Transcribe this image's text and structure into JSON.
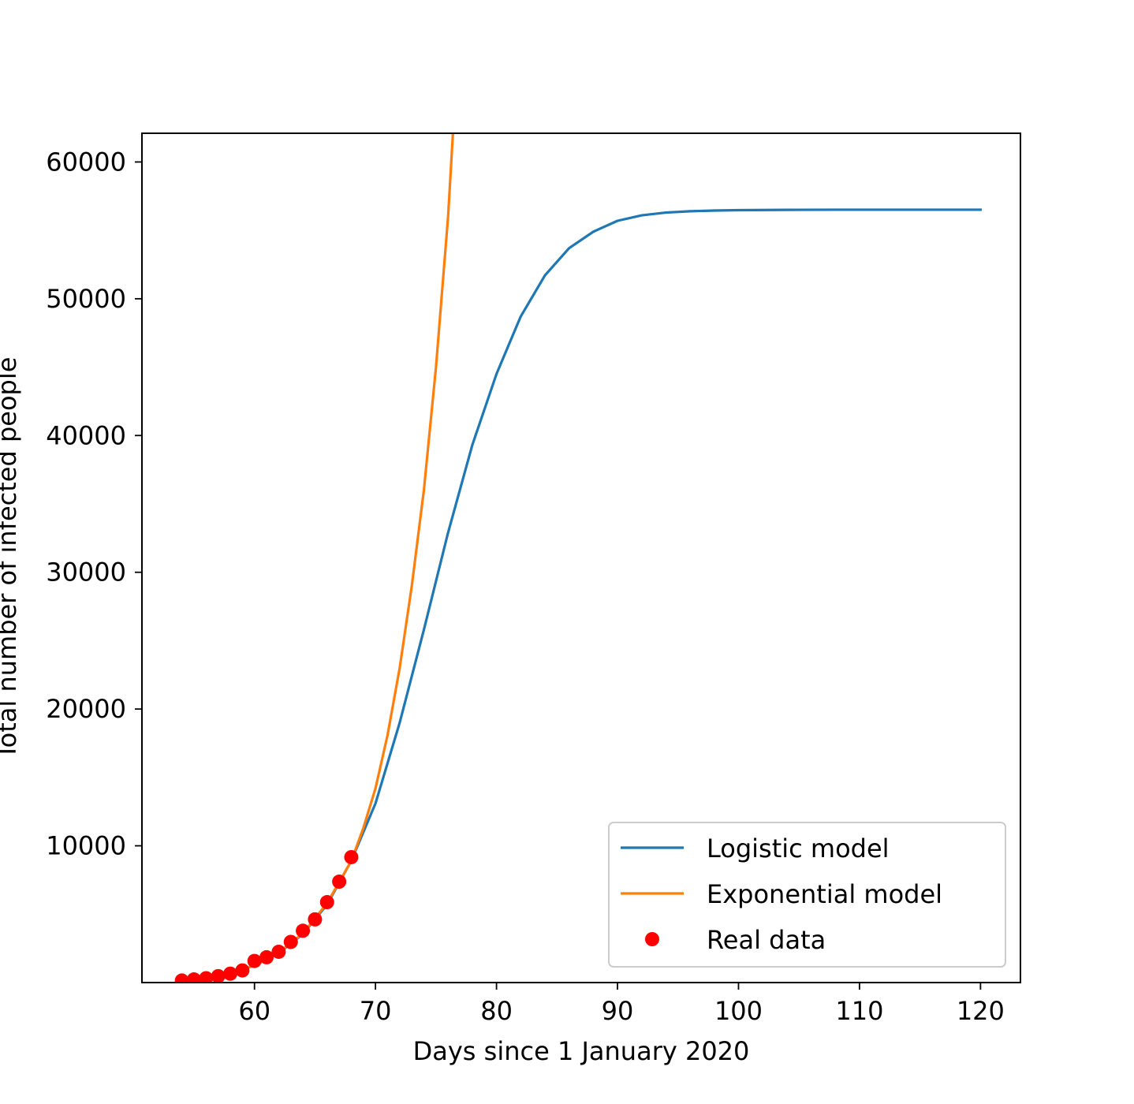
{
  "chart_data": {
    "type": "line",
    "xlabel": "Days since 1 January 2020",
    "ylabel": "Total number of infected people",
    "xlim": [
      50.7,
      123.3
    ],
    "ylim": [
      0,
      62100
    ],
    "xticks": [
      60,
      70,
      80,
      90,
      100,
      110,
      120
    ],
    "yticks": [
      10000,
      20000,
      30000,
      40000,
      50000,
      60000
    ],
    "legend_position": "lower-right",
    "grid": false,
    "colors": {
      "logistic": "#1f77b4",
      "exponential": "#ff7f0e",
      "real": "#ff0000"
    },
    "series": [
      {
        "name": "Logistic model",
        "kind": "line",
        "color": "#1f77b4",
        "x": [
          54,
          56,
          58,
          60,
          62,
          64,
          66,
          68,
          70,
          72,
          74,
          76,
          78,
          80,
          82,
          84,
          86,
          88,
          90,
          92,
          94,
          96,
          98,
          100,
          104,
          108,
          112,
          116,
          120
        ],
        "y": [
          130,
          330,
          680,
          1250,
          2150,
          3550,
          5700,
          8900,
          13100,
          19000,
          25800,
          32900,
          39300,
          44500,
          48700,
          51700,
          53700,
          54900,
          55700,
          56100,
          56300,
          56400,
          56450,
          56480,
          56500,
          56510,
          56510,
          56510,
          56510
        ]
      },
      {
        "name": "Exponential model",
        "kind": "line",
        "color": "#ff7f0e",
        "x": [
          54,
          56,
          58,
          60,
          62,
          64,
          66,
          68,
          69,
          70,
          71,
          72,
          73,
          74,
          75,
          76,
          76.4
        ],
        "y": [
          150,
          330,
          690,
          1250,
          2180,
          3600,
          5800,
          8900,
          11300,
          14200,
          18100,
          23000,
          29000,
          36000,
          45000,
          56000,
          62100
        ]
      },
      {
        "name": "Real data",
        "kind": "scatter",
        "color": "#ff0000",
        "x": [
          54,
          55,
          56,
          57,
          58,
          59,
          60,
          61,
          62,
          63,
          64,
          65,
          66,
          67,
          68
        ],
        "y": [
          150,
          230,
          320,
          470,
          650,
          890,
          1580,
          1850,
          2250,
          2970,
          3790,
          4620,
          5880,
          7380,
          9170
        ]
      }
    ]
  }
}
